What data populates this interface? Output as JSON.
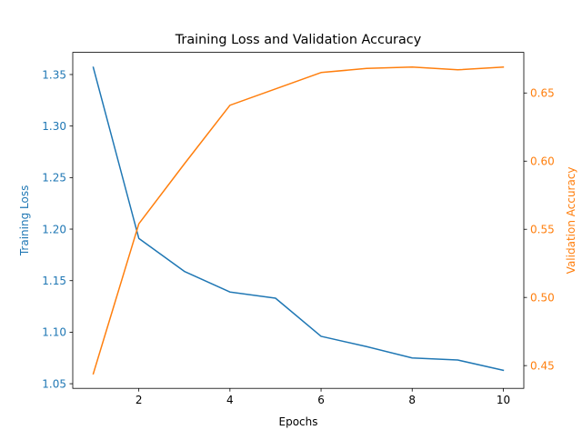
{
  "chart_data": {
    "type": "line",
    "title": "Training Loss and Validation Accuracy",
    "xlabel": "Epochs",
    "ylabel_left": "Training Loss",
    "ylabel_right": "Validation Accuracy",
    "x": [
      1,
      2,
      3,
      4,
      5,
      6,
      7,
      8,
      9,
      10
    ],
    "xlim": [
      0.55,
      10.45
    ],
    "xticks": [
      2,
      4,
      6,
      8,
      10
    ],
    "ylim_left": [
      1.0455,
      1.3715
    ],
    "ylim_right": [
      0.4333,
      0.6798
    ],
    "yticks_left": [
      "1.05",
      "1.10",
      "1.15",
      "1.20",
      "1.25",
      "1.30",
      "1.35"
    ],
    "yticks_right": [
      "0.45",
      "0.50",
      "0.55",
      "0.60",
      "0.65"
    ],
    "grid": false,
    "series": [
      {
        "axis": "left",
        "color": "#1f77b4",
        "values": [
          1.357,
          1.191,
          1.159,
          1.139,
          1.133,
          1.096,
          1.086,
          1.075,
          1.073,
          1.063
        ]
      },
      {
        "axis": "right",
        "color": "#ff7f0e",
        "values": [
          0.444,
          0.554,
          0.598,
          0.641,
          0.653,
          0.665,
          0.668,
          0.669,
          0.667,
          0.669
        ]
      }
    ]
  }
}
